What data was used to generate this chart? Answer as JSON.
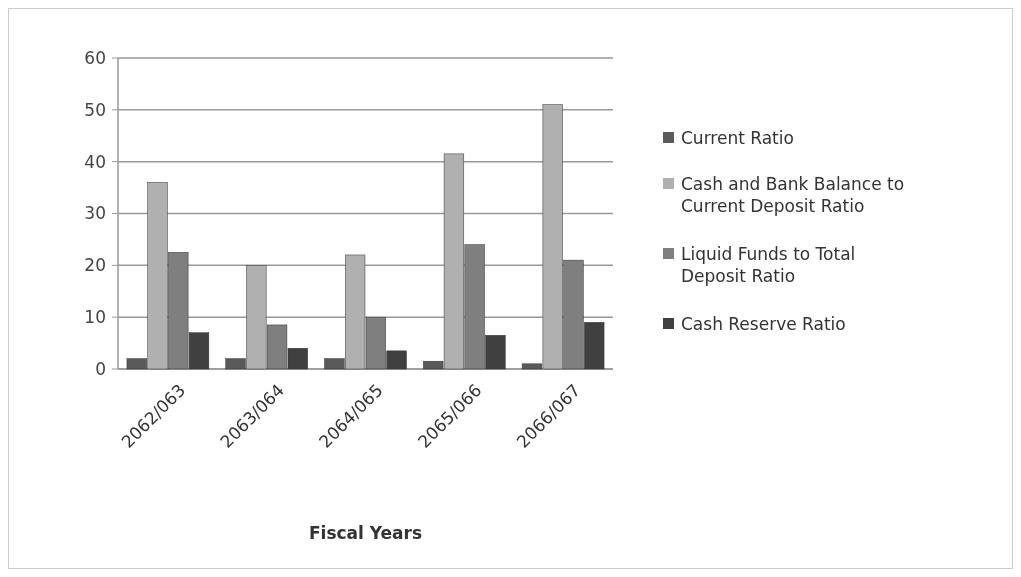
{
  "chart_data": {
    "type": "bar",
    "xlabel": "Fiscal Years",
    "categories": [
      "2062/063",
      "2063/064",
      "2064/065",
      "2065/066",
      "2066/067"
    ],
    "series": [
      {
        "name": "Current Ratio",
        "color": "#5a5a5a",
        "values": [
          2,
          2,
          2,
          1.5,
          1
        ]
      },
      {
        "name": "Cash and Bank Balance to Current Deposit Ratio",
        "color": "#b0b0b0",
        "values": [
          36,
          20,
          22,
          41.5,
          51
        ]
      },
      {
        "name": "Liquid Funds to Total Deposit Ratio",
        "color": "#7f7f7f",
        "values": [
          22.5,
          8.5,
          10,
          24,
          21
        ]
      },
      {
        "name": "Cash Reserve Ratio",
        "color": "#404040",
        "values": [
          7,
          4,
          3.5,
          6.5,
          9
        ]
      }
    ],
    "ylim": [
      0,
      60
    ],
    "yticks": [
      0,
      10,
      20,
      30,
      40,
      50,
      60
    ],
    "grid": "y",
    "legend": "right"
  }
}
